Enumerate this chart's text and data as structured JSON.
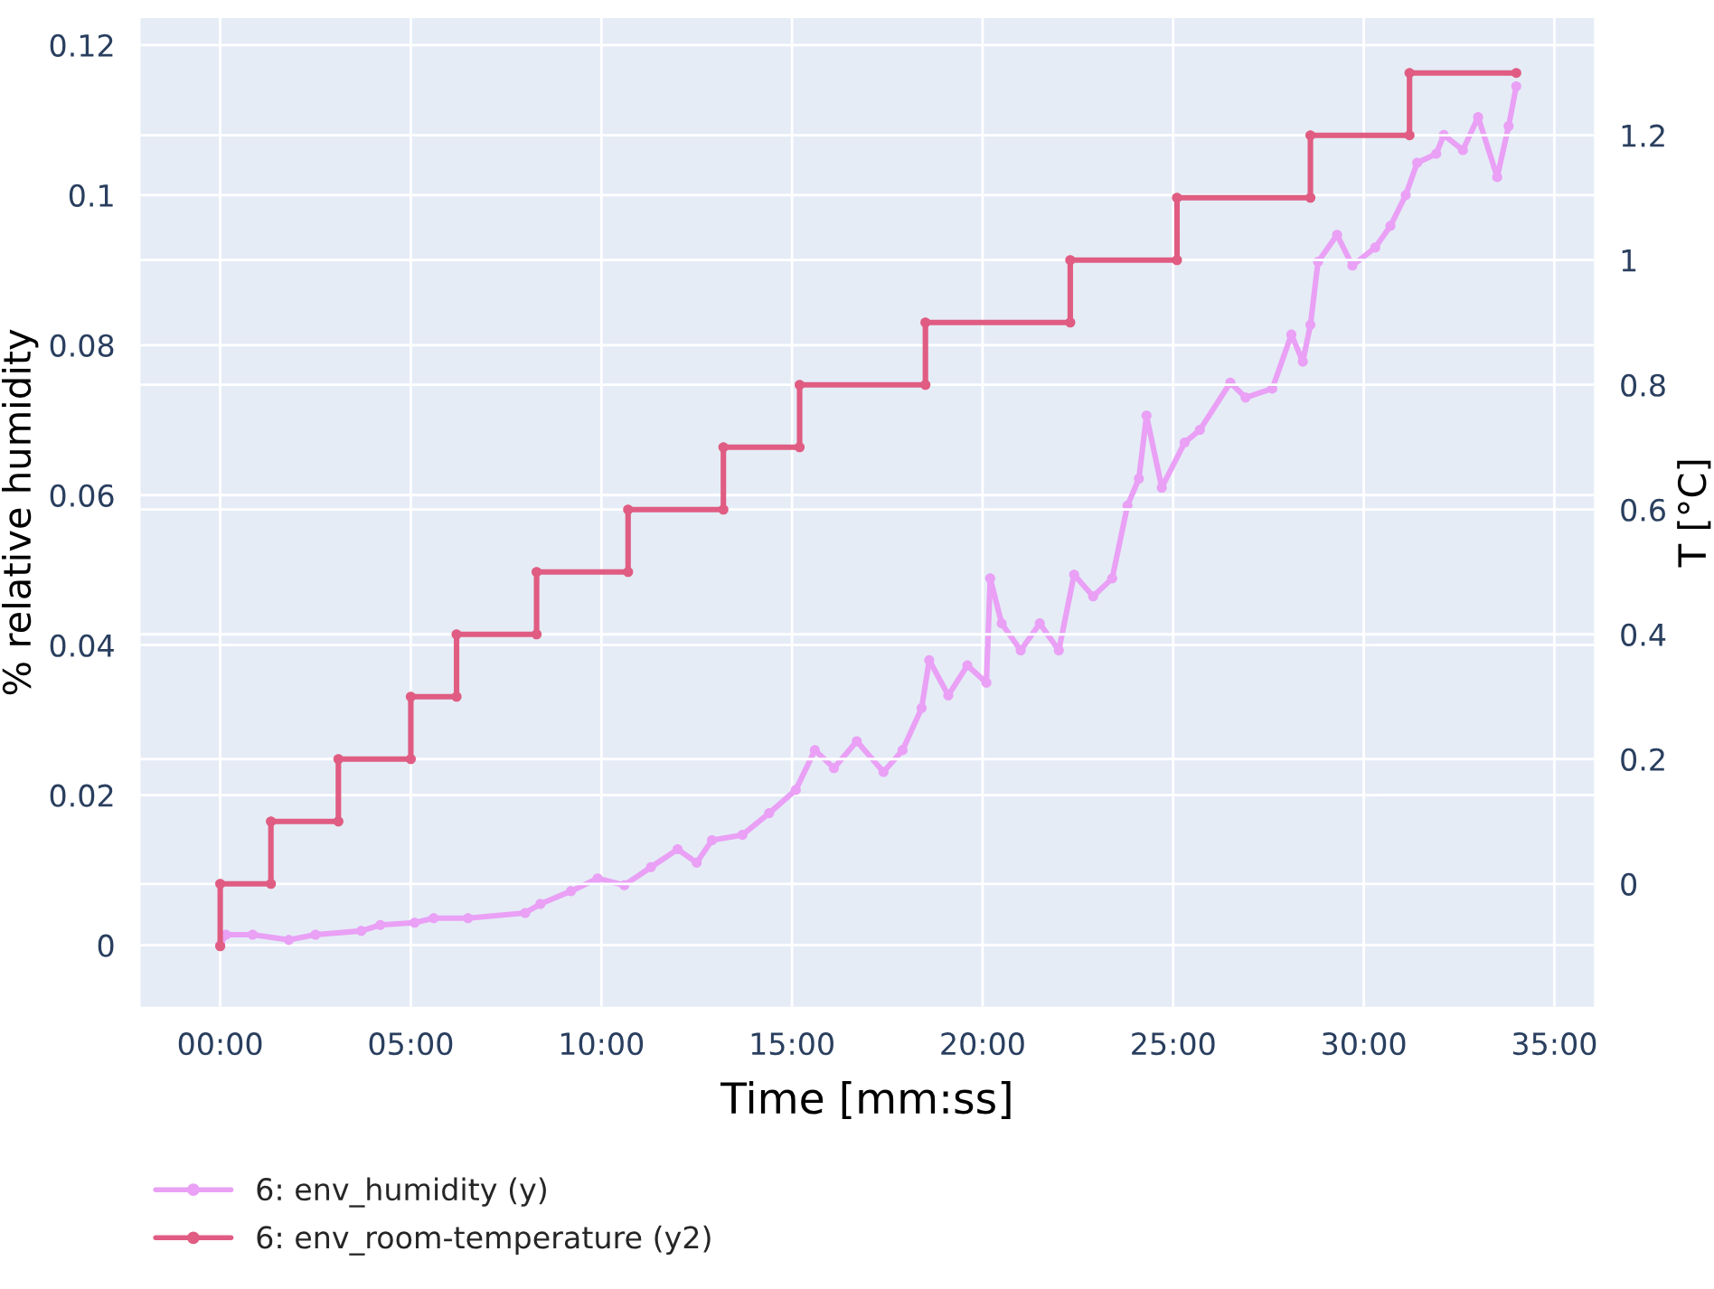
{
  "chart_data": {
    "type": "line",
    "xlabel": "Time [mm:ss]",
    "ylabel": "% relative humidity",
    "y2label": "T [°C]",
    "xlim": [
      -2.09,
      36.04
    ],
    "ylim": [
      -0.0082,
      0.1236
    ],
    "y2lim": [
      -0.197,
      1.388
    ],
    "xticks": [
      {
        "value": 0,
        "label": "00:00"
      },
      {
        "value": 5,
        "label": "05:00"
      },
      {
        "value": 10,
        "label": "10:00"
      },
      {
        "value": 15,
        "label": "15:00"
      },
      {
        "value": 20,
        "label": "20:00"
      },
      {
        "value": 25,
        "label": "25:00"
      },
      {
        "value": 30,
        "label": "30:00"
      },
      {
        "value": 35,
        "label": "35:00"
      }
    ],
    "yticks": [
      0,
      0.02,
      0.04,
      0.06,
      0.08,
      0.1,
      0.12
    ],
    "y2ticks": [
      0,
      0.2,
      0.4,
      0.6,
      0.8,
      1,
      1.2
    ],
    "grid": true,
    "legend": "bottom left",
    "marker": "circle",
    "line_style": "solid",
    "series": [
      {
        "name": "6: env_humidity (y)",
        "color": "#e9a0f5",
        "x": [
          0,
          0.15,
          0.85,
          1.8,
          2.5,
          3.7,
          4.2,
          5.1,
          5.6,
          6.5,
          8.0,
          8.4,
          9.2,
          9.9,
          10.6,
          11.3,
          12.0,
          12.5,
          12.9,
          13.7,
          14.4,
          15.1,
          15.6,
          16.1,
          16.7,
          17.4,
          17.9,
          18.4,
          18.6,
          19.1,
          19.6,
          20.1,
          20.2,
          20.5,
          21.0,
          21.5,
          22.0,
          22.4,
          22.9,
          23.4,
          23.8,
          24.1,
          24.3,
          24.7,
          25.3,
          25.7,
          26.5,
          26.9,
          27.6,
          28.1,
          28.4,
          28.6,
          28.8,
          29.3,
          29.7,
          30.3,
          30.7,
          31.1,
          31.4,
          31.9,
          32.1,
          32.6,
          33.0,
          33.5,
          33.8,
          34.0
        ],
        "values": [
          0,
          0.0014,
          0.0014,
          0.0007,
          0.0014,
          0.0019,
          0.0027,
          0.003,
          0.0036,
          0.0036,
          0.0043,
          0.0055,
          0.0072,
          0.0089,
          0.008,
          0.0104,
          0.0128,
          0.011,
          0.014,
          0.0147,
          0.0176,
          0.0207,
          0.026,
          0.0236,
          0.0272,
          0.0231,
          0.026,
          0.0316,
          0.038,
          0.0333,
          0.0373,
          0.035,
          0.0489,
          0.0429,
          0.0393,
          0.0429,
          0.0393,
          0.0494,
          0.0465,
          0.0489,
          0.0586,
          0.0622,
          0.0706,
          0.061,
          0.067,
          0.0687,
          0.075,
          0.073,
          0.0742,
          0.0814,
          0.0778,
          0.0827,
          0.0911,
          0.0947,
          0.0906,
          0.093,
          0.0959,
          0.1,
          0.1043,
          0.1055,
          0.108,
          0.106,
          0.1104,
          0.1024,
          0.1092,
          0.1145
        ]
      },
      {
        "name": "6: env_room-temperature (y2)",
        "color": "#e05c82",
        "axis": "y2",
        "x": [
          0,
          0,
          1.33,
          1.33,
          3.1,
          3.1,
          5.0,
          5.0,
          6.2,
          6.2,
          8.3,
          8.3,
          10.7,
          10.7,
          13.2,
          13.2,
          15.2,
          15.2,
          18.5,
          18.5,
          22.3,
          22.3,
          25.1,
          25.1,
          28.6,
          28.6,
          31.2,
          31.2,
          34.0
        ],
        "values": [
          -0.1,
          0,
          0,
          0.1,
          0.1,
          0.2,
          0.2,
          0.3,
          0.3,
          0.4,
          0.4,
          0.5,
          0.5,
          0.6,
          0.6,
          0.7,
          0.7,
          0.8,
          0.8,
          0.9,
          0.9,
          1.0,
          1.0,
          1.1,
          1.1,
          1.2,
          1.2,
          1.3,
          1.3
        ]
      }
    ]
  }
}
